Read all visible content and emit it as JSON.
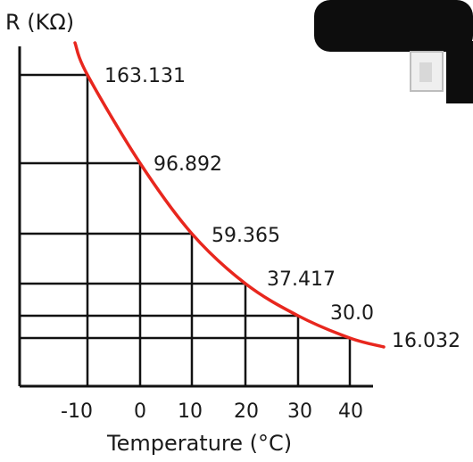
{
  "chart_data": {
    "type": "line",
    "title": "",
    "ylabel": "R (KΩ)",
    "xlabel": "Temperature (°C)",
    "x": [
      -10,
      0,
      10,
      20,
      30,
      40
    ],
    "x_tick_labels": [
      "-10",
      "0",
      "10",
      "20",
      "30",
      "40"
    ],
    "series": [
      {
        "values": [
          163.131,
          96.892,
          59.365,
          37.417,
          30.0,
          16.032
        ],
        "data_labels": [
          "163.131",
          "96.892",
          "59.365",
          "37.417",
          "30.0",
          "16.032"
        ],
        "color": "#e8271e"
      }
    ],
    "grid": "drop-lines from axes to each data point",
    "legend": "none"
  },
  "colors": {
    "curve": "#e8271e",
    "grid": "#111111",
    "text": "#1a1a1a"
  }
}
